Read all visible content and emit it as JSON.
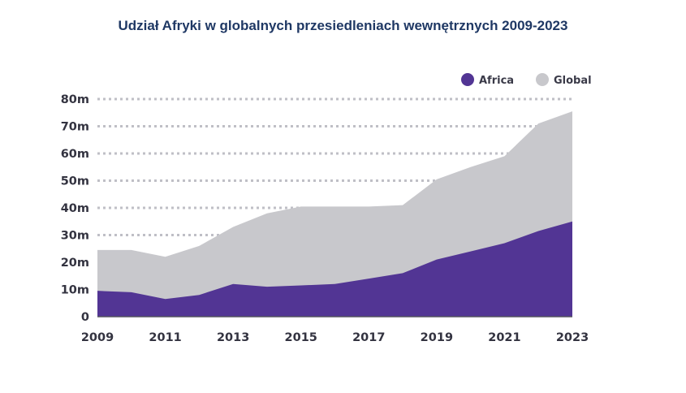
{
  "title": "Udział Afryki w globalnych przesiedleniach wewnętrznych 2009-2023",
  "colors": {
    "africa": "#523594",
    "global": "#c8c8cc",
    "grid": "#bfbfc6",
    "title": "#1f3864"
  },
  "chart_data": {
    "type": "area",
    "title": "Udział Afryki w globalnych przesiedleniach wewnętrznych 2009-2023",
    "x": [
      2009,
      2010,
      2011,
      2012,
      2013,
      2014,
      2015,
      2016,
      2017,
      2018,
      2019,
      2020,
      2021,
      2022,
      2023
    ],
    "x_ticks": [
      "2009",
      "2011",
      "2013",
      "2015",
      "2017",
      "2019",
      "2021",
      "2023"
    ],
    "y_ticks": [
      "0",
      "10m",
      "20m",
      "30m",
      "40m",
      "50m",
      "60m",
      "70m",
      "80m"
    ],
    "ylim": [
      0,
      80
    ],
    "grid": true,
    "legend_position": "top-right",
    "series": [
      {
        "name": "Global",
        "values": [
          24.5,
          24.5,
          22,
          26,
          33,
          38,
          40.5,
          40.5,
          40.5,
          41,
          50.5,
          55,
          59,
          71,
          75.5
        ]
      },
      {
        "name": "Africa",
        "values": [
          9.5,
          9,
          6.5,
          8,
          12,
          11,
          11.5,
          12,
          14,
          16,
          21,
          24,
          27,
          31.5,
          35
        ]
      }
    ]
  }
}
